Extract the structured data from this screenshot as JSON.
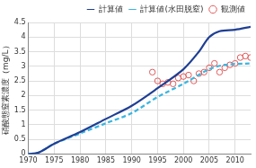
{
  "chart_data": {
    "type": "line",
    "y_label": "硝酸態窒素濃度（mg/L）",
    "xlim": [
      1970,
      2013
    ],
    "xticks": [
      1970,
      1975,
      1980,
      1985,
      1990,
      1995,
      2000,
      2005,
      2010
    ],
    "ylim": [
      0,
      4.5
    ],
    "yticks": [
      0,
      0.5,
      1,
      1.5,
      2,
      2.5,
      3,
      3.5,
      4,
      4.5
    ],
    "grid": true,
    "legend": "top",
    "series": [
      {
        "name": "計算値",
        "color": "#1f3f94",
        "type": "line",
        "line_style": "solid",
        "marker": "none",
        "x": [
          1970,
          1972,
          1975,
          1980,
          1985,
          1990,
          1995,
          2000,
          2003,
          2005,
          2007,
          2010,
          2013
        ],
        "values": [
          0,
          0.05,
          0.35,
          0.75,
          1.2,
          1.65,
          2.25,
          2.9,
          3.5,
          4.0,
          4.2,
          4.25,
          4.35
        ]
      },
      {
        "name": "計算値(水田脱窒)",
        "color": "#3ab5e0",
        "type": "line",
        "line_style": "dashed",
        "marker": "none",
        "x": [
          1970,
          1972,
          1975,
          1980,
          1985,
          1990,
          1995,
          2000,
          2005,
          2008,
          2013
        ],
        "values": [
          0,
          0.05,
          0.35,
          0.7,
          1.05,
          1.4,
          1.95,
          2.4,
          2.9,
          3.05,
          3.1
        ]
      },
      {
        "name": "観測値",
        "color": "#e05a5a",
        "type": "scatter",
        "line_style": "none",
        "marker": "circle",
        "x": [
          1994,
          1995,
          1996,
          1997,
          1998,
          1999,
          2000,
          2001,
          2002,
          2003,
          2004,
          2005,
          2006,
          2007,
          2008,
          2009,
          2010,
          2011,
          2012,
          2013
        ],
        "values": [
          2.8,
          2.5,
          2.4,
          2.45,
          2.4,
          2.6,
          2.65,
          2.7,
          2.5,
          2.75,
          2.8,
          2.95,
          3.1,
          2.8,
          2.95,
          3.05,
          3.1,
          3.3,
          3.35,
          3.3
        ]
      }
    ]
  }
}
